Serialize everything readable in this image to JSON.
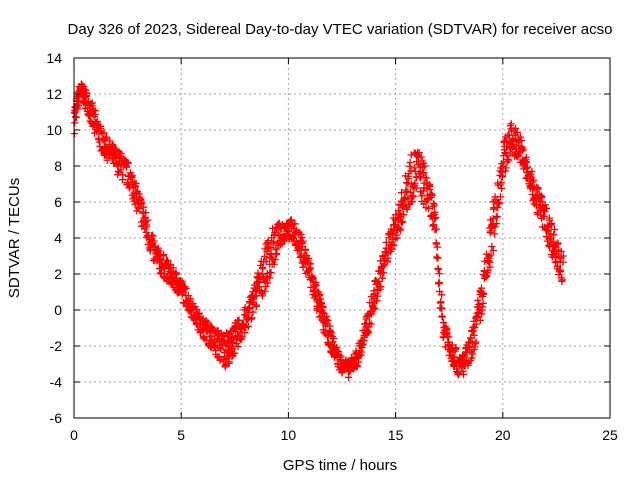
{
  "chart_data": {
    "type": "scatter",
    "title": "Day 326 of 2023, Sidereal Day-to-day VTEC variation (SDTVAR) for receiver acso",
    "xlabel": "GPS time / hours",
    "ylabel": "SDTVAR / TECUs",
    "xlim": [
      0,
      25
    ],
    "ylim": [
      -6,
      14
    ],
    "xticks": [
      0,
      5,
      10,
      15,
      20,
      25
    ],
    "yticks": [
      -6,
      -4,
      -2,
      0,
      2,
      4,
      6,
      8,
      10,
      12,
      14
    ],
    "grid": true,
    "marker": "plus",
    "color": "#ff0000",
    "series": [
      {
        "name": "SDTVAR",
        "x": [
          0.0,
          0.3,
          0.6,
          1.0,
          1.4,
          1.8,
          2.2,
          2.6,
          3.0,
          3.4,
          3.8,
          4.2,
          4.6,
          5.0,
          5.4,
          5.8,
          6.2,
          6.6,
          7.0,
          7.3,
          7.6,
          8.0,
          8.4,
          8.8,
          9.2,
          9.6,
          10.0,
          10.4,
          10.8,
          11.2,
          11.6,
          12.0,
          12.4,
          12.8,
          13.2,
          13.6,
          14.0,
          14.4,
          14.8,
          15.2,
          15.6,
          16.0,
          16.4,
          16.8,
          17.2,
          17.6,
          18.0,
          18.4,
          18.8,
          19.2,
          19.6,
          20.0,
          20.4,
          20.8,
          21.2,
          21.6,
          22.0,
          22.4,
          22.8
        ],
        "y": [
          10.5,
          12.3,
          11.6,
          10.2,
          9.2,
          8.6,
          8.0,
          7.4,
          6.0,
          4.5,
          3.0,
          2.4,
          1.8,
          1.2,
          0.3,
          -0.6,
          -1.2,
          -1.8,
          -2.2,
          -2.0,
          -1.4,
          -0.6,
          0.6,
          2.0,
          3.2,
          4.2,
          4.6,
          4.0,
          2.8,
          1.2,
          -0.4,
          -1.8,
          -2.9,
          -3.3,
          -2.7,
          -1.2,
          0.6,
          2.4,
          4.0,
          5.2,
          7.0,
          7.8,
          6.8,
          5.2,
          -0.8,
          -2.2,
          -3.2,
          -2.6,
          -0.8,
          1.8,
          5.0,
          8.2,
          9.6,
          9.0,
          7.4,
          6.2,
          5.0,
          3.6,
          2.2
        ],
        "spread": [
          1.4,
          0.8,
          1.2,
          1.6,
          1.3,
          1.2,
          1.5,
          1.4,
          1.5,
          1.6,
          1.4,
          1.3,
          1.2,
          1.1,
          1.0,
          1.0,
          1.2,
          1.6,
          2.0,
          1.8,
          1.6,
          1.5,
          1.6,
          2.4,
          2.6,
          1.4,
          1.2,
          1.4,
          1.6,
          1.6,
          1.4,
          1.2,
          1.0,
          0.9,
          1.1,
          1.4,
          1.6,
          1.5,
          1.5,
          1.8,
          2.6,
          2.8,
          2.4,
          1.6,
          1.6,
          1.4,
          1.3,
          1.6,
          2.0,
          2.4,
          2.6,
          2.0,
          1.8,
          1.6,
          1.4,
          1.6,
          1.8,
          2.0,
          1.8
        ]
      }
    ]
  }
}
